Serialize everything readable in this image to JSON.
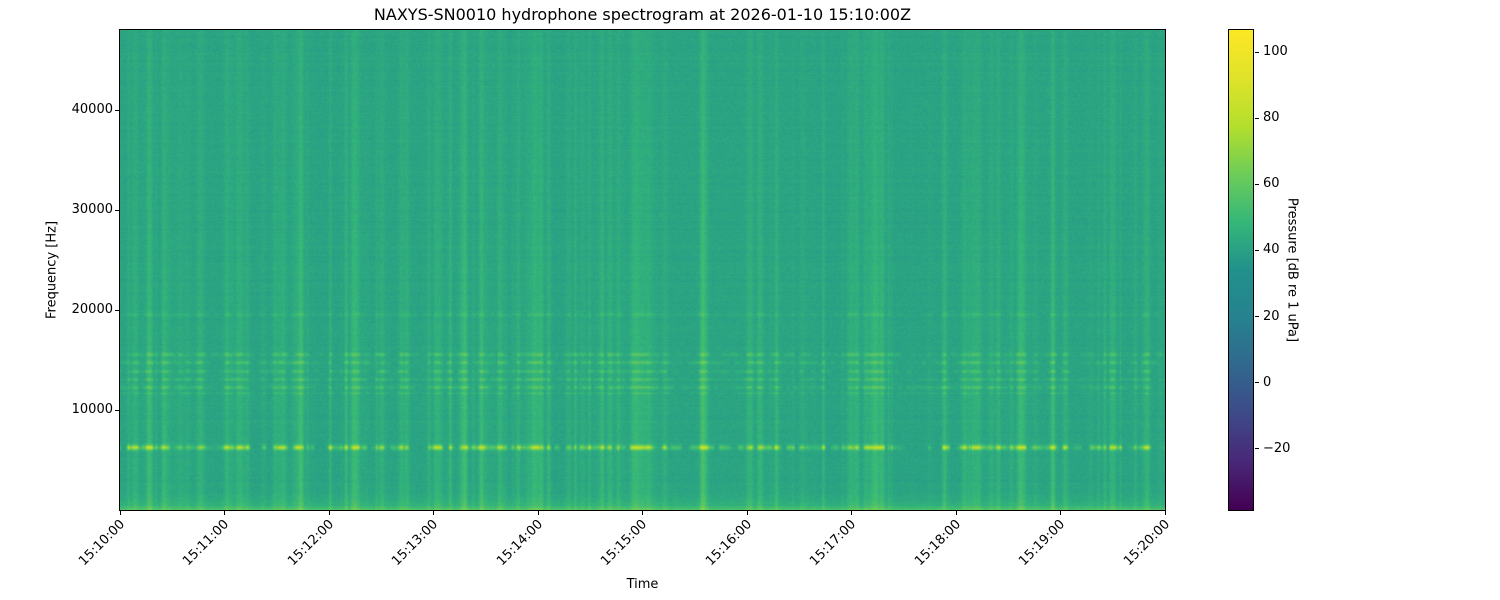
{
  "figure": {
    "background_color": "#ffffff",
    "text_color": "#000000"
  },
  "chart_data": {
    "type": "heatmap",
    "subtype": "spectrogram",
    "title": "NAXYS-SN0010 hydrophone spectrogram at 2026-01-10 15:10:00Z",
    "xlabel": "Time",
    "ylabel": "Frequency [Hz]",
    "x_tick_labels": [
      "15:10:00",
      "15:11:00",
      "15:12:00",
      "15:13:00",
      "15:14:00",
      "15:15:00",
      "15:16:00",
      "15:17:00",
      "15:18:00",
      "15:19:00",
      "15:20:00"
    ],
    "y_tick_values": [
      10000,
      20000,
      30000,
      40000
    ],
    "y_tick_labels": [
      "10000",
      "20000",
      "30000",
      "40000"
    ],
    "freq_range_hz": [
      0,
      48000
    ],
    "time_span_s": 600,
    "grid": false,
    "colorbar": {
      "label": "Pressure [dB re 1 uPa]",
      "tick_values": [
        -20,
        0,
        20,
        40,
        60,
        80,
        100
      ],
      "tick_labels": [
        "−20",
        "0",
        "20",
        "40",
        "60",
        "80",
        "100"
      ],
      "vmin_db": -38.5,
      "vmax_db": 106.7,
      "colormap": "viridis",
      "colormap_stops": [
        {
          "pos": 0.0,
          "color": "#440154"
        },
        {
          "pos": 0.1,
          "color": "#482878"
        },
        {
          "pos": 0.2,
          "color": "#3e4a89"
        },
        {
          "pos": 0.3,
          "color": "#31688e"
        },
        {
          "pos": 0.4,
          "color": "#26828e"
        },
        {
          "pos": 0.5,
          "color": "#21918c"
        },
        {
          "pos": 0.6,
          "color": "#35b779"
        },
        {
          "pos": 0.7,
          "color": "#6dcd59"
        },
        {
          "pos": 0.8,
          "color": "#b4de2c"
        },
        {
          "pos": 0.9,
          "color": "#dfe32a"
        },
        {
          "pos": 1.0,
          "color": "#fde725"
        }
      ]
    },
    "spectrogram_model": {
      "background_db": 41,
      "pixel_noise_db": 2.2,
      "row_noise_db": 0.9,
      "tonal_bands": [
        {
          "freq_hz": 6300,
          "sigma_hz": 170,
          "peak_boost_db": 33
        },
        {
          "freq_hz": 11700,
          "sigma_hz": 100,
          "peak_boost_db": 6
        },
        {
          "freq_hz": 12300,
          "sigma_hz": 110,
          "peak_boost_db": 12
        },
        {
          "freq_hz": 13100,
          "sigma_hz": 100,
          "peak_boost_db": 10
        },
        {
          "freq_hz": 13900,
          "sigma_hz": 100,
          "peak_boost_db": 11
        },
        {
          "freq_hz": 14800,
          "sigma_hz": 110,
          "peak_boost_db": 12
        },
        {
          "freq_hz": 15600,
          "sigma_hz": 120,
          "peak_boost_db": 11
        },
        {
          "freq_hz": 19600,
          "sigma_hz": 140,
          "peak_boost_db": 5
        }
      ],
      "broadband_low_bands": [
        {
          "scale_hz": 600,
          "boost_db": 13
        },
        {
          "scale_hz": 130,
          "boost_db": 8
        }
      ],
      "vertical_stripes": {
        "seed": 20260110,
        "event_count": 260,
        "max_boost_db": 9
      }
    }
  }
}
